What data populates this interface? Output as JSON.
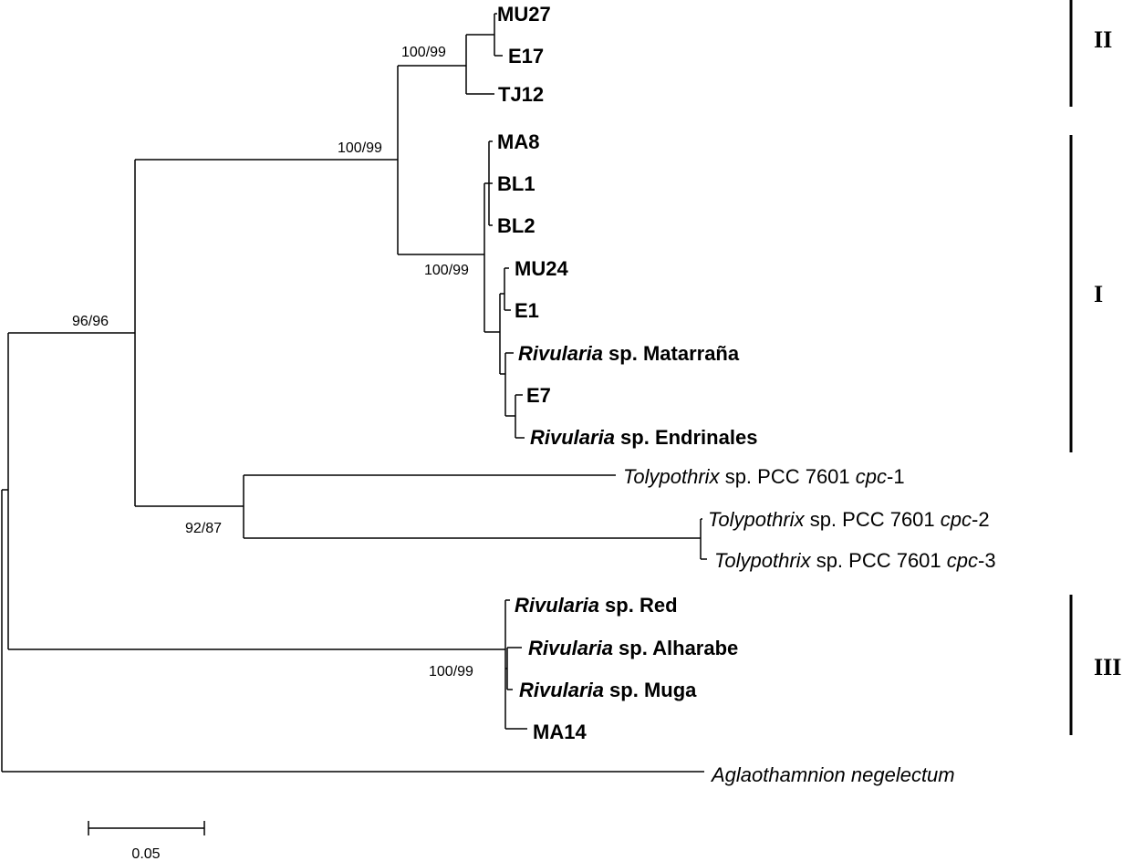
{
  "taxa": {
    "mu27": {
      "name": "MU27"
    },
    "e17": {
      "name": "E17"
    },
    "tj12": {
      "name": "TJ12"
    },
    "ma8": {
      "name": "MA8"
    },
    "bl1": {
      "name": "BL1"
    },
    "bl2": {
      "name": "BL2"
    },
    "mu24": {
      "name": "MU24"
    },
    "e1": {
      "name": "E1"
    },
    "matarrana": {
      "genus": "Rivularia",
      "rest": " sp. Matarraña"
    },
    "e7": {
      "name": "E7"
    },
    "endrinales": {
      "genus": "Rivularia",
      "rest": " sp. Endrinales"
    },
    "cpc1": {
      "genus": "Tolypothrix",
      "mid": " sp. PCC 7601 ",
      "gene": "cpc",
      "suffix": "-1"
    },
    "cpc2": {
      "genus": "Tolypothrix",
      "mid": " sp. PCC 7601 ",
      "gene": "cpc",
      "suffix": "-2"
    },
    "cpc3": {
      "genus": "Tolypothrix",
      "mid": " sp. PCC 7601 ",
      "gene": "cpc",
      "suffix": "-3"
    },
    "red": {
      "genus": "Rivularia",
      "rest": " sp. Red"
    },
    "alharabe": {
      "genus": "Rivularia",
      "rest": " sp. Alharabe"
    },
    "muga": {
      "genus": "Rivularia",
      "rest": " sp. Muga"
    },
    "ma14": {
      "name": "MA14"
    },
    "aglao": {
      "name": "Aglaothamnion negelectum"
    }
  },
  "support": {
    "clade_ii": "100/99",
    "clades_i_ii": "100/99",
    "clade_i": "100/99",
    "rivularia_tolypothrix": "96/96",
    "tolypothrix": "92/87",
    "clade_iii": "100/99"
  },
  "clades": {
    "ii": "II",
    "i": "I",
    "iii": "III"
  },
  "scale": {
    "label": "0.05",
    "value": 0.05
  }
}
